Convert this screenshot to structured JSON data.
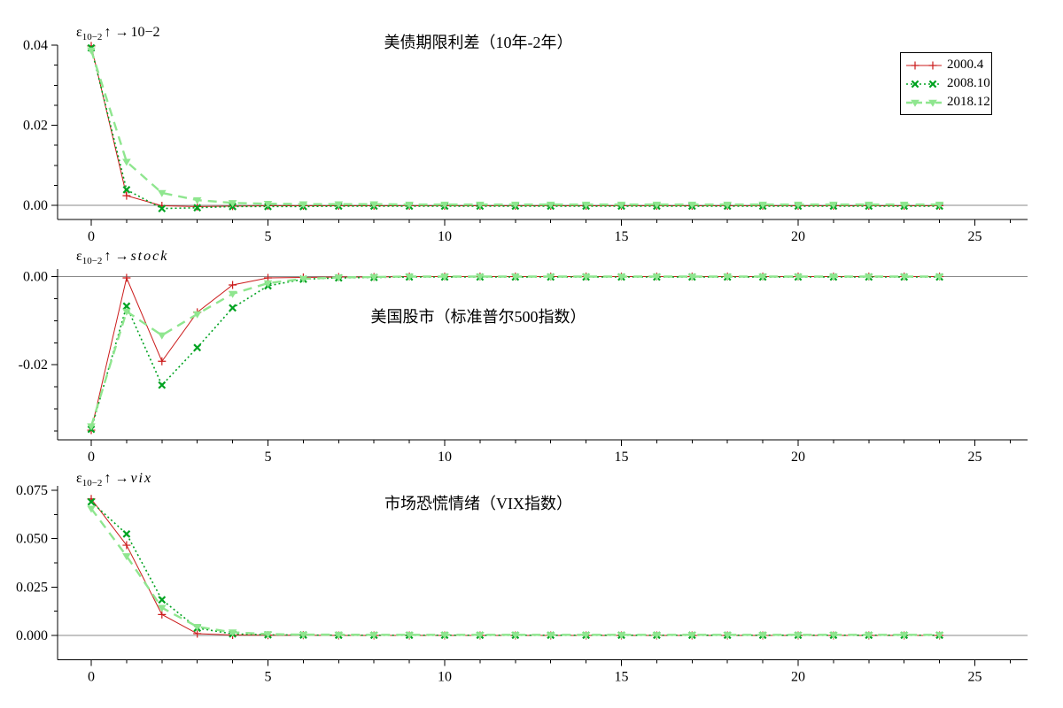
{
  "figure": {
    "background": "#ffffff"
  },
  "legend": {
    "position": "top-right",
    "entries": [
      "2000.4",
      "2008.10",
      "2018.12"
    ]
  },
  "series_styles": [
    {
      "name": "2000.4",
      "color": "#cb1b1b",
      "line": "solid",
      "marker": "plus"
    },
    {
      "name": "2008.10",
      "color": "#00a321",
      "line": "dotted",
      "marker": "cross"
    },
    {
      "name": "2018.12",
      "color": "#8fe68f",
      "line": "dashed",
      "marker": "triangle-down"
    }
  ],
  "chart_data": [
    {
      "type": "line",
      "title": "美债期限利差（10年-2年）",
      "impulse_label": {
        "epsilon": "ε",
        "sub": "10−2",
        "arrows": "↑ →",
        "target": "10−2"
      },
      "x": [
        0,
        1,
        2,
        3,
        4,
        5,
        6,
        7,
        8,
        9,
        10,
        11,
        12,
        13,
        14,
        15,
        16,
        17,
        18,
        19,
        20,
        21,
        22,
        23,
        24
      ],
      "xticks": [
        0,
        5,
        10,
        15,
        20,
        25
      ],
      "xlim": [
        -0.95,
        26.5
      ],
      "ylim": [
        -0.0035,
        0.04
      ],
      "yticks": {
        "major": [
          0,
          0.02,
          0.04
        ],
        "labels": [
          "0.00",
          "0.02",
          "0.04"
        ],
        "minor_step": 0.005
      },
      "grid": "zero-line-only",
      "series": [
        {
          "name": "2000.4",
          "values": [
            0.0398,
            0.0024,
            -0.0001,
            -0.0003,
            -0.0002,
            -0.0001,
            -0.0001,
            -0.0001,
            -0.0001,
            -0.0001,
            -0.0001,
            -0.0001,
            -0.0001,
            -0.0001,
            -0.0001,
            -0.0001,
            -0.0001,
            -0.0001,
            -0.0001,
            -0.0001,
            -0.0001,
            -0.0001,
            -0.0001,
            -0.0001,
            -0.0001
          ]
        },
        {
          "name": "2008.10",
          "values": [
            0.0393,
            0.0039,
            -0.0008,
            -0.0006,
            -0.0003,
            -0.0003,
            -0.0003,
            -0.0002,
            -0.0002,
            -0.0002,
            -0.0002,
            -0.0002,
            -0.0002,
            -0.0002,
            -0.0002,
            -0.0002,
            -0.0002,
            -0.0002,
            -0.0002,
            -0.0002,
            -0.0002,
            -0.0002,
            -0.0002,
            -0.0002,
            -0.0002
          ]
        },
        {
          "name": "2018.12",
          "values": [
            0.0387,
            0.0109,
            0.0031,
            0.0013,
            0.0006,
            0.0004,
            0.0003,
            0.0003,
            0.0003,
            0.0002,
            0.0002,
            0.0002,
            0.0002,
            0.0002,
            0.0002,
            0.0002,
            0.0002,
            0.0002,
            0.0002,
            0.0002,
            0.0002,
            0.0002,
            0.0002,
            0.0002,
            0.0002
          ]
        }
      ]
    },
    {
      "type": "line",
      "title": "美国股市（标准普尔500指数）",
      "impulse_label": {
        "epsilon": "ε",
        "sub": "10−2",
        "arrows": "↑ →",
        "target": "stock"
      },
      "x": [
        0,
        1,
        2,
        3,
        4,
        5,
        6,
        7,
        8,
        9,
        10,
        11,
        12,
        13,
        14,
        15,
        16,
        17,
        18,
        19,
        20,
        21,
        22,
        23,
        24
      ],
      "xticks": [
        0,
        5,
        10,
        15,
        20,
        25
      ],
      "xlim": [
        -0.95,
        26.5
      ],
      "ylim": [
        -0.037,
        0.0017
      ],
      "yticks": {
        "major": [
          0,
          -0.02
        ],
        "labels": [
          "0.00",
          "-0.02"
        ],
        "minor_step": 0.005
      },
      "grid": "zero-line-only",
      "series": [
        {
          "name": "2000.4",
          "values": [
            -0.0348,
            -0.0003,
            -0.0192,
            -0.0081,
            -0.0019,
            -0.0003,
            -0.0002,
            -0.0001,
            -0.0001,
            0,
            0,
            0,
            0,
            0,
            0,
            0,
            0,
            0,
            0,
            0,
            0,
            0,
            0,
            0,
            0
          ]
        },
        {
          "name": "2008.10",
          "values": [
            -0.0346,
            -0.0067,
            -0.0246,
            -0.0161,
            -0.0071,
            -0.0021,
            -0.0006,
            -0.0003,
            -0.0002,
            -0.0001,
            -0.0001,
            -0.0001,
            -0.0001,
            -0.0001,
            -0.0001,
            -0.0001,
            -0.0001,
            -0.0001,
            -0.0001,
            -0.0001,
            -0.0001,
            -0.0001,
            -0.0001,
            -0.0001,
            -0.0001
          ]
        },
        {
          "name": "2018.12",
          "values": [
            -0.0339,
            -0.0079,
            -0.0133,
            -0.0085,
            -0.0039,
            -0.0015,
            -0.0005,
            -0.0002,
            -0.0001,
            0,
            0,
            0,
            0,
            0,
            0,
            0,
            0,
            0,
            0,
            0,
            0,
            0,
            0,
            0,
            0
          ]
        }
      ]
    },
    {
      "type": "line",
      "title": "市场恐慌情绪（VIX指数）",
      "impulse_label": {
        "epsilon": "ε",
        "sub": "10−2",
        "arrows": "↑ →",
        "target": "vix"
      },
      "x": [
        0,
        1,
        2,
        3,
        4,
        5,
        6,
        7,
        8,
        9,
        10,
        11,
        12,
        13,
        14,
        15,
        16,
        17,
        18,
        19,
        20,
        21,
        22,
        23,
        24
      ],
      "xticks": [
        0,
        5,
        10,
        15,
        20,
        25
      ],
      "xlim": [
        -0.95,
        26.5
      ],
      "ylim": [
        -0.0123,
        0.0772
      ],
      "yticks": {
        "major": [
          0,
          0.025,
          0.05,
          0.075
        ],
        "labels": [
          "0.000",
          "0.025",
          "0.050",
          "0.075"
        ],
        "minor_step": 0.0125
      },
      "grid": "zero-line-only",
      "series": [
        {
          "name": "2000.4",
          "values": [
            0.0705,
            0.0466,
            0.0108,
            0.0009,
            0.0002,
            0.0001,
            0.0001,
            0,
            0,
            0,
            0,
            0,
            0,
            0,
            0,
            0,
            0,
            0,
            0,
            0,
            0,
            0,
            0,
            0,
            0
          ]
        },
        {
          "name": "2008.10",
          "values": [
            0.069,
            0.0524,
            0.0184,
            0.0038,
            0.0008,
            0.0003,
            0.0002,
            0.0001,
            0.0001,
            0.0001,
            0.0001,
            0.0001,
            0.0001,
            0.0001,
            0.0001,
            0.0001,
            0.0001,
            0.0001,
            0.0001,
            0.0001,
            0.0001,
            0.0001,
            0.0001,
            0.0001,
            0.0001
          ]
        },
        {
          "name": "2018.12",
          "values": [
            0.0655,
            0.041,
            0.0143,
            0.0045,
            0.0016,
            0.0007,
            0.0004,
            0.0004,
            0.0003,
            0.0003,
            0.0003,
            0.0003,
            0.0003,
            0.0003,
            0.0003,
            0.0003,
            0.0003,
            0.0003,
            0.0003,
            0.0003,
            0.0003,
            0.0003,
            0.0003,
            0.0003,
            0.0003
          ]
        }
      ]
    }
  ]
}
